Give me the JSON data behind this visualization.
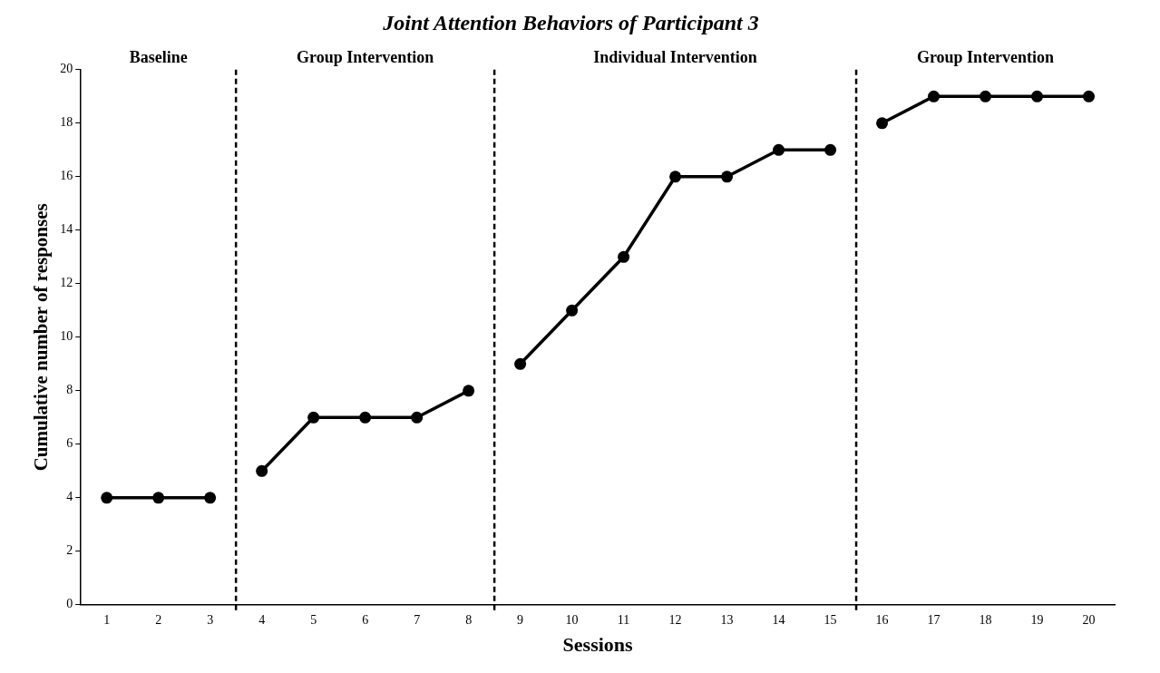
{
  "chart_data": {
    "type": "line",
    "title": "Joint Attention Behaviors of Participant 3",
    "xlabel": "Sessions",
    "ylabel": "Cumulative number of responses",
    "xlim": [
      0.5,
      20.5
    ],
    "xticks": [
      1,
      2,
      3,
      4,
      5,
      6,
      7,
      8,
      9,
      10,
      11,
      12,
      13,
      14,
      15,
      16,
      17,
      18,
      19,
      20
    ],
    "ylim": [
      0,
      20
    ],
    "yticks": [
      0,
      2,
      4,
      6,
      8,
      10,
      12,
      14,
      16,
      18,
      20
    ],
    "series": [
      {
        "color": "#000000",
        "x": [
          1,
          2,
          3
        ],
        "values": [
          4,
          4,
          4
        ]
      },
      {
        "color": "#000000",
        "x": [
          4,
          5,
          6,
          7,
          8
        ],
        "values": [
          5,
          7,
          7,
          7,
          8
        ]
      },
      {
        "color": "#000000",
        "x": [
          9,
          10,
          11,
          12,
          13,
          14,
          15
        ],
        "values": [
          9,
          11,
          13,
          16,
          16,
          17,
          17
        ]
      },
      {
        "color": "#000000",
        "x": [
          16,
          17,
          18,
          19,
          20
        ],
        "values": [
          18,
          19,
          19,
          19,
          19
        ]
      }
    ],
    "ref_lines": [
      {
        "axis": "x",
        "value": 3.5,
        "color": "#000000",
        "line_style": "dashed"
      },
      {
        "axis": "x",
        "value": 8.5,
        "color": "#000000",
        "line_style": "dashed"
      },
      {
        "axis": "x",
        "value": 15.5,
        "color": "#000000",
        "line_style": "dashed"
      }
    ],
    "annotations": [
      "Baseline",
      "Group Intervention",
      "Individual Intervention",
      "Group Intervention"
    ],
    "marker": "circle",
    "line_style": "solid",
    "grid": false,
    "legend": false
  }
}
